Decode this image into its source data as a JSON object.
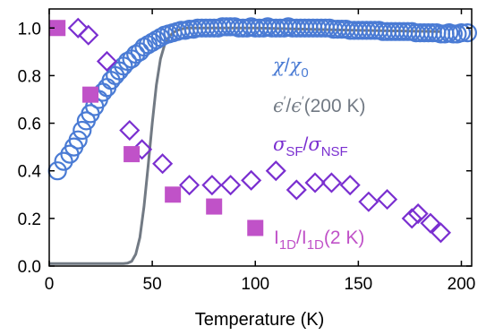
{
  "chart_data": {
    "type": "scatter",
    "title": "",
    "xlabel": "Temperature  (K)",
    "ylabel": "",
    "xlim": [
      0,
      205
    ],
    "ylim": [
      0,
      1.08
    ],
    "xticks": [
      0,
      50,
      100,
      150,
      200
    ],
    "yticks": [
      0.0,
      0.2,
      0.4,
      0.6,
      0.8,
      1.0
    ],
    "xtick_labels": [
      "0",
      "50",
      "100",
      "150",
      "200"
    ],
    "ytick_labels": [
      "0.0",
      "0.2",
      "0.4",
      "0.6",
      "0.8",
      "1.0"
    ],
    "grid": false,
    "colors": {
      "chi": "#4a7bd4",
      "eps": "#727a84",
      "sigma": "#7a2fd0",
      "intensity": "#c052c8"
    },
    "series": [
      {
        "key": "chi",
        "marker": "circle",
        "x": [
          4,
          7,
          10,
          12,
          14,
          16,
          18,
          20,
          22,
          24,
          26,
          28,
          30,
          32,
          34,
          36,
          38,
          40,
          42,
          44,
          46,
          48,
          50,
          52,
          54,
          56,
          58,
          60,
          62,
          64,
          66,
          68,
          70,
          72,
          74,
          76,
          78,
          80,
          82,
          84,
          86,
          88,
          90,
          92,
          94,
          96,
          98,
          100,
          102,
          104,
          106,
          108,
          110,
          112,
          114,
          116,
          118,
          120,
          122,
          124,
          126,
          128,
          130,
          132,
          134,
          136,
          138,
          140,
          142,
          144,
          146,
          148,
          150,
          152,
          154,
          156,
          158,
          160,
          162,
          164,
          166,
          168,
          170,
          172,
          174,
          176,
          178,
          180,
          182,
          184,
          186,
          188,
          190,
          192,
          194,
          196,
          198,
          200,
          203
        ],
        "y": [
          0.4,
          0.44,
          0.47,
          0.5,
          0.53,
          0.57,
          0.61,
          0.64,
          0.67,
          0.7,
          0.73,
          0.75,
          0.78,
          0.8,
          0.82,
          0.84,
          0.86,
          0.87,
          0.89,
          0.9,
          0.92,
          0.93,
          0.94,
          0.95,
          0.96,
          0.97,
          0.975,
          0.98,
          0.985,
          0.99,
          0.99,
          0.995,
          0.995,
          1.0,
          1.0,
          1.0,
          1.0,
          1.0,
          1.0,
          1.005,
          1.005,
          1.005,
          1.005,
          1.0,
          1.0,
          1.0,
          1.005,
          1.0,
          1.0,
          1.0,
          1.005,
          1.0,
          1.0,
          1.0,
          1.0,
          1.005,
          1.0,
          1.0,
          1.0,
          1.0,
          1.0,
          1.0,
          1.0,
          1.0,
          1.0,
          1.0,
          0.995,
          0.995,
          0.995,
          0.995,
          0.99,
          0.99,
          0.99,
          0.99,
          0.99,
          0.99,
          0.99,
          0.99,
          0.985,
          0.985,
          0.985,
          0.985,
          0.985,
          0.985,
          0.985,
          0.985,
          0.98,
          0.98,
          0.98,
          0.98,
          0.98,
          0.98,
          0.975,
          0.975,
          0.98,
          0.975,
          0.975,
          0.98,
          0.98
        ]
      },
      {
        "key": "eps",
        "marker": "line",
        "x": [
          0,
          36,
          38,
          40,
          42,
          44,
          46,
          48,
          50,
          52,
          54,
          56,
          58,
          60,
          62,
          64,
          66,
          70,
          80,
          100,
          150,
          190
        ],
        "y": [
          0.01,
          0.01,
          0.012,
          0.02,
          0.05,
          0.12,
          0.25,
          0.42,
          0.6,
          0.76,
          0.87,
          0.93,
          0.96,
          0.98,
          0.99,
          0.995,
          1.0,
          1.0,
          1.0,
          1.0,
          0.99,
          0.985
        ]
      },
      {
        "key": "sigma",
        "marker": "diamond",
        "x": [
          14,
          19,
          28,
          39,
          45,
          55,
          68,
          79,
          88,
          98,
          110,
          120,
          129,
          137,
          146,
          155,
          164,
          176,
          179,
          185,
          190
        ],
        "y": [
          1.0,
          0.97,
          0.86,
          0.57,
          0.49,
          0.43,
          0.34,
          0.34,
          0.34,
          0.36,
          0.4,
          0.32,
          0.35,
          0.35,
          0.34,
          0.27,
          0.28,
          0.2,
          0.22,
          0.18,
          0.14
        ]
      },
      {
        "key": "intensity",
        "marker": "square",
        "x": [
          4,
          20,
          40,
          60,
          80,
          100
        ],
        "y": [
          1.0,
          0.72,
          0.47,
          0.3,
          0.25,
          0.16
        ]
      }
    ]
  }
}
